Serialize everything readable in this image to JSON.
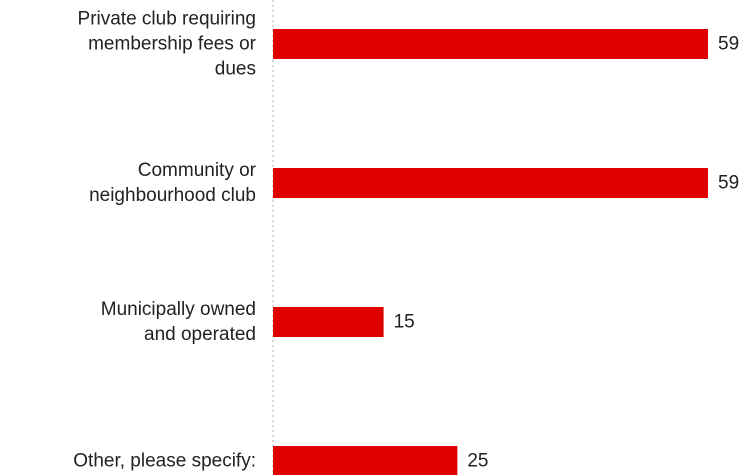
{
  "chart_data": {
    "type": "bar",
    "orientation": "horizontal",
    "categories": [
      "Private club requiring membership fees or dues",
      "Community or neighbourhood club",
      "Municipally owned and operated",
      "Other, please specify:"
    ],
    "category_lines": [
      [
        "Private club requiring",
        "membership fees or",
        "dues"
      ],
      [
        "Community or",
        "neighbourhood club"
      ],
      [
        "Municipally owned",
        "and operated"
      ],
      [
        "Other, please specify:"
      ]
    ],
    "values": [
      59,
      59,
      15,
      25
    ],
    "value_labels": [
      "59",
      "59",
      "15",
      "25"
    ],
    "xlim": [
      0,
      59
    ],
    "grid": false,
    "bar_color": "#e00000",
    "title": "",
    "xlabel": "",
    "ylabel": ""
  }
}
